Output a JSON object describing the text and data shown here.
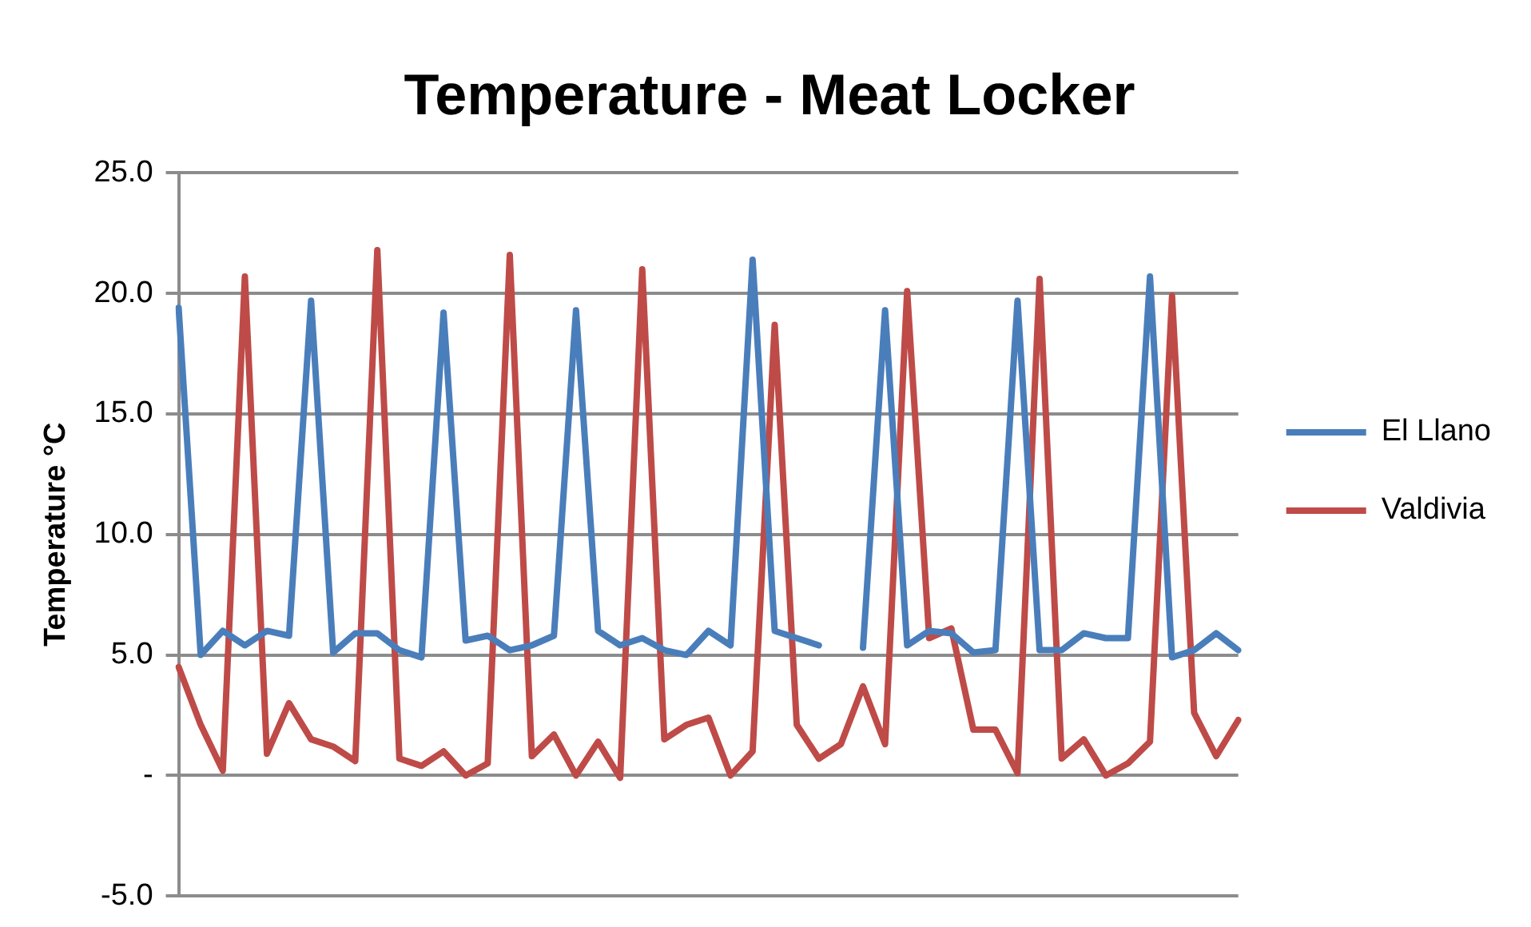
{
  "chart_data": {
    "type": "line",
    "title": "Temperature - Meat Locker",
    "ylabel": "Temperature °C",
    "categories": [
      null,
      null,
      null,
      null,
      null,
      null,
      null,
      null,
      null,
      null,
      null,
      null,
      null,
      null,
      null,
      null,
      null,
      null,
      null,
      null,
      null,
      null,
      null,
      null,
      null,
      null,
      null,
      null,
      null,
      null,
      null,
      null,
      null,
      null,
      null,
      null,
      null,
      null,
      null,
      null,
      null,
      null,
      null,
      null,
      null,
      null,
      null,
      null,
      null
    ],
    "series": [
      {
        "name": "El Llano",
        "color": "#4a7ebb",
        "values": [
          19.4,
          5.0,
          6.0,
          5.4,
          6.0,
          5.8,
          19.7,
          5.1,
          5.9,
          5.9,
          5.2,
          4.9,
          19.2,
          5.6,
          5.8,
          5.2,
          5.4,
          5.8,
          19.3,
          6.0,
          5.4,
          5.7,
          5.2,
          5.0,
          6.0,
          5.4,
          21.4,
          6.0,
          5.7,
          5.4,
          null,
          5.3,
          19.3,
          5.4,
          6.0,
          5.9,
          5.1,
          5.2,
          19.7,
          5.2,
          5.2,
          5.9,
          5.7,
          5.7,
          20.7,
          4.9,
          5.2,
          5.9,
          5.2
        ]
      },
      {
        "name": "Valdivia",
        "color": "#be4b48",
        "values": [
          4.5,
          2.1,
          0.2,
          20.7,
          0.9,
          3.0,
          1.5,
          1.2,
          0.6,
          21.8,
          0.7,
          0.4,
          1.0,
          0.0,
          0.5,
          21.6,
          0.8,
          1.7,
          0.0,
          1.4,
          -0.1,
          21.0,
          1.5,
          2.1,
          2.4,
          0.0,
          1.0,
          18.7,
          2.1,
          0.7,
          1.3,
          3.7,
          1.3,
          20.1,
          5.7,
          6.1,
          1.9,
          1.9,
          0.1,
          20.6,
          0.7,
          1.5,
          0.0,
          0.5,
          1.4,
          19.9,
          2.6,
          0.8,
          2.3
        ]
      }
    ],
    "ylim": [
      -5,
      25
    ],
    "yticks": [
      {
        "value": -5,
        "label": "-5.0"
      },
      {
        "value": 0,
        "label": "-"
      },
      {
        "value": 5,
        "label": "5.0"
      },
      {
        "value": 10,
        "label": "10.0"
      },
      {
        "value": 15,
        "label": "15.0"
      },
      {
        "value": 20,
        "label": "20.0"
      },
      {
        "value": 25,
        "label": "25.0"
      }
    ],
    "grid": "y",
    "legend": "right",
    "tick_labels": "y",
    "marker": "none",
    "line_style": "solid"
  }
}
